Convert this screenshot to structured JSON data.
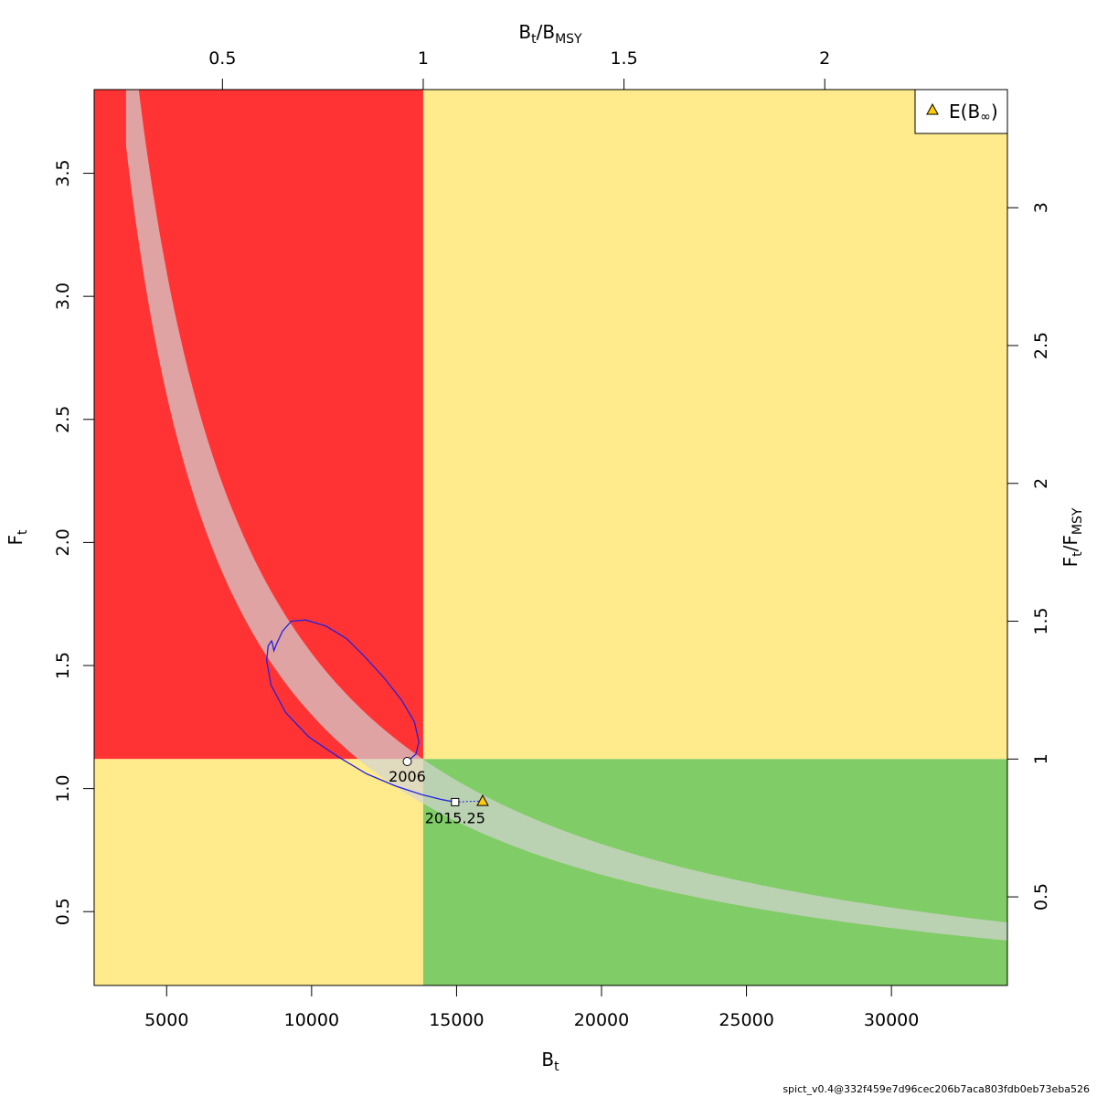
{
  "chart_data": {
    "type": "scatter",
    "title": "",
    "xlabel": {
      "main": "B",
      "sub": "t"
    },
    "ylabel": {
      "main": "F",
      "sub": "t"
    },
    "top_label": {
      "main": "B",
      "sub1": "t",
      "slash": "/",
      "main2": "B",
      "sub2": "MSY"
    },
    "right_label": {
      "main": "F",
      "sub1": "t",
      "slash": "/",
      "main2": "F",
      "sub2": "MSY"
    },
    "xlim": [
      2500,
      34000
    ],
    "ylim": [
      0.2,
      3.84
    ],
    "x_ticks": [
      5000,
      10000,
      15000,
      20000,
      25000,
      30000
    ],
    "y_ticks": [
      0.5,
      1.0,
      1.5,
      2.0,
      2.5,
      3.0,
      3.5
    ],
    "y_tick_labels": [
      "0.5",
      "1.0",
      "1.5",
      "2.0",
      "2.5",
      "3.0",
      "3.5"
    ],
    "top_ticks": [
      0.5,
      1,
      1.5,
      2
    ],
    "top_tick_labels": [
      "0.5",
      "1",
      "1.5",
      "2"
    ],
    "right_ticks": [
      0.5,
      1,
      1.5,
      2,
      2.5,
      3
    ],
    "right_tick_labels": [
      "0.5",
      "1",
      "1.5",
      "2",
      "2.5",
      "3"
    ],
    "bmsy": 13850,
    "fmsy": 1.12,
    "zones": {
      "red": "#ff3333",
      "yellow": "#ffeb8c",
      "green": "#80cc66",
      "band": "#d3d3d3",
      "path": "#2222dd"
    },
    "msy_band": {
      "upper_k": 15500,
      "lower_k": 13000,
      "x_start": 3600,
      "x_end": 34000
    },
    "trajectory": [
      [
        13300,
        1.11
      ],
      [
        13600,
        1.14
      ],
      [
        13700,
        1.19
      ],
      [
        13550,
        1.27
      ],
      [
        13100,
        1.36
      ],
      [
        12500,
        1.45
      ],
      [
        11800,
        1.54
      ],
      [
        11200,
        1.61
      ],
      [
        10500,
        1.66
      ],
      [
        9800,
        1.685
      ],
      [
        9300,
        1.68
      ],
      [
        9000,
        1.64
      ],
      [
        8800,
        1.59
      ],
      [
        8700,
        1.56
      ],
      [
        8650,
        1.59
      ],
      [
        8620,
        1.6
      ],
      [
        8500,
        1.58
      ],
      [
        8450,
        1.52
      ],
      [
        8600,
        1.42
      ],
      [
        9100,
        1.31
      ],
      [
        9900,
        1.21
      ],
      [
        10900,
        1.13
      ],
      [
        11900,
        1.06
      ],
      [
        12900,
        1.01
      ],
      [
        13800,
        0.975
      ],
      [
        14500,
        0.955
      ],
      [
        14950,
        0.945
      ]
    ],
    "forecast": [
      [
        14950,
        0.945
      ],
      [
        15900,
        0.95
      ]
    ],
    "points": {
      "start": {
        "x": 13300,
        "y": 1.11,
        "label": "2006"
      },
      "end": {
        "x": 14950,
        "y": 0.945,
        "label": "2015.25"
      },
      "equilibrium": {
        "x": 15900,
        "y": 0.95
      }
    },
    "legend": {
      "label_main": "E(B",
      "label_sub": "∞",
      "label_close": ")",
      "marker_color": "#ffcc00",
      "position": "top-right"
    }
  },
  "footer": "spict_v0.4@332f459e7d96cec206b7aca803fdb0eb73eba526"
}
